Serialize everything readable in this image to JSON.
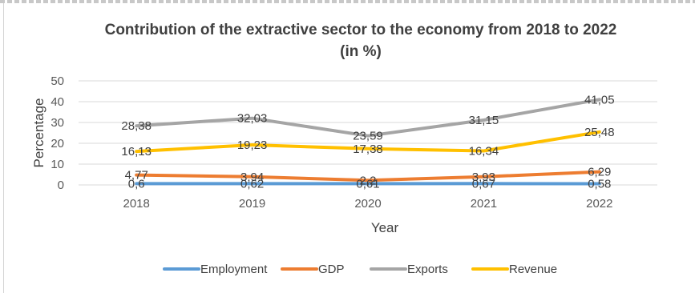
{
  "chart_data": {
    "type": "line",
    "title_line1": "Contribution of the extractive sector to the economy from 2018 to 2022",
    "title_line2": "(in %)",
    "xlabel": "Year",
    "ylabel": "Percentage",
    "ylim": [
      0,
      50
    ],
    "yticks": [
      0,
      10,
      20,
      30,
      40,
      50
    ],
    "grid": true,
    "legend_position": "bottom",
    "categories": [
      "2018",
      "2019",
      "2020",
      "2021",
      "2022"
    ],
    "series": [
      {
        "name": "Employment",
        "color": "#5b9bd5",
        "values": [
          0.6,
          0.62,
          0.61,
          0.67,
          0.58
        ],
        "labels": [
          "0,6",
          "0,62",
          "0,61",
          "0,67",
          "0,58"
        ]
      },
      {
        "name": "GDP",
        "color": "#ed7d31",
        "values": [
          4.77,
          3.94,
          2.2,
          3.93,
          6.29
        ],
        "labels": [
          "4,77",
          "3,94",
          "2,2",
          "3,93",
          "6,29"
        ]
      },
      {
        "name": "Exports",
        "color": "#a5a5a5",
        "values": [
          28.38,
          32.03,
          23.59,
          31.15,
          41.05
        ],
        "labels": [
          "28,38",
          "32,03",
          "23,59",
          "31,15",
          "41,05"
        ]
      },
      {
        "name": "Revenue",
        "color": "#ffc000",
        "values": [
          16.13,
          19.23,
          17.38,
          16.34,
          25.48
        ],
        "labels": [
          "16,13",
          "19,23",
          "17,38",
          "16,34",
          "25,48"
        ]
      }
    ]
  }
}
